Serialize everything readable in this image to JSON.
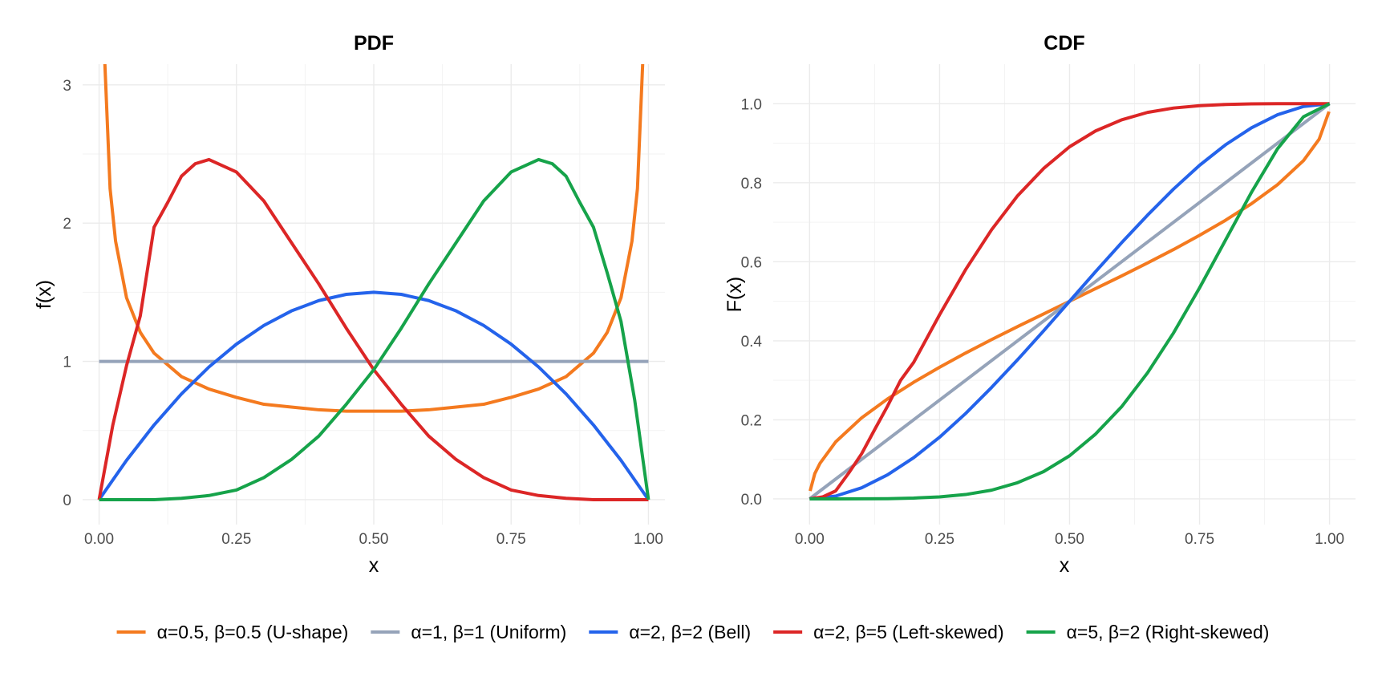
{
  "chart_data": [
    {
      "type": "line",
      "title": "PDF",
      "xlabel": "x",
      "ylabel": "f(x)",
      "xlim": [
        -0.03,
        1.03
      ],
      "ylim": [
        -0.18,
        3.15
      ],
      "xticks": [
        0,
        0.25,
        0.5,
        0.75,
        1
      ],
      "xtick_labels": [
        "0.00",
        "0.25",
        "0.50",
        "0.75",
        "1.00"
      ],
      "yticks": [
        0,
        1,
        2,
        3
      ],
      "ytick_labels": [
        "0",
        "1",
        "2",
        "3"
      ],
      "grid": true,
      "series": [
        {
          "name": "α=0.5, β=0.5 (U-shape)",
          "color": "#f47a1f",
          "x": [
            0.01,
            0.02,
            0.03,
            0.05,
            0.075,
            0.1,
            0.15,
            0.2,
            0.25,
            0.3,
            0.35,
            0.4,
            0.45,
            0.5,
            0.55,
            0.6,
            0.65,
            0.7,
            0.75,
            0.8,
            0.85,
            0.9,
            0.925,
            0.95,
            0.97,
            0.98,
            0.99
          ],
          "y": [
            3.2,
            2.25,
            1.87,
            1.46,
            1.21,
            1.06,
            0.89,
            0.8,
            0.74,
            0.69,
            0.67,
            0.65,
            0.64,
            0.64,
            0.64,
            0.65,
            0.67,
            0.69,
            0.74,
            0.8,
            0.89,
            1.06,
            1.21,
            1.46,
            1.87,
            2.25,
            3.2
          ]
        },
        {
          "name": "α=1, β=1 (Uniform)",
          "color": "#95a3b9",
          "x": [
            0,
            1
          ],
          "y": [
            1,
            1
          ]
        },
        {
          "name": "α=2, β=2 (Bell)",
          "color": "#2463eb",
          "x": [
            0,
            0.05,
            0.1,
            0.15,
            0.2,
            0.25,
            0.3,
            0.35,
            0.4,
            0.45,
            0.5,
            0.55,
            0.6,
            0.65,
            0.7,
            0.75,
            0.8,
            0.85,
            0.9,
            0.95,
            1
          ],
          "y": [
            0,
            0.285,
            0.54,
            0.765,
            0.96,
            1.125,
            1.26,
            1.365,
            1.44,
            1.485,
            1.5,
            1.485,
            1.44,
            1.365,
            1.26,
            1.125,
            0.96,
            0.765,
            0.54,
            0.285,
            0
          ]
        },
        {
          "name": "α=2, β=5 (Left-skewed)",
          "color": "#dc2626",
          "x": [
            0,
            0.025,
            0.05,
            0.075,
            0.1,
            0.125,
            0.15,
            0.175,
            0.2,
            0.25,
            0.3,
            0.35,
            0.4,
            0.45,
            0.5,
            0.55,
            0.6,
            0.65,
            0.7,
            0.75,
            0.8,
            0.85,
            0.9,
            0.95,
            1
          ],
          "y": [
            0,
            0.54,
            0.97,
            1.33,
            1.97,
            2.15,
            2.34,
            2.43,
            2.46,
            2.37,
            2.16,
            1.86,
            1.56,
            1.24,
            0.94,
            0.69,
            0.46,
            0.29,
            0.16,
            0.07,
            0.03,
            0.01,
            0,
            0,
            0
          ]
        },
        {
          "name": "α=5, β=2 (Right-skewed)",
          "color": "#16a34a",
          "x": [
            0,
            0.05,
            0.1,
            0.15,
            0.2,
            0.25,
            0.3,
            0.35,
            0.4,
            0.45,
            0.5,
            0.55,
            0.6,
            0.65,
            0.7,
            0.75,
            0.8,
            0.825,
            0.85,
            0.875,
            0.9,
            0.925,
            0.95,
            0.975,
            1
          ],
          "y": [
            0,
            0,
            0,
            0.01,
            0.03,
            0.07,
            0.16,
            0.29,
            0.46,
            0.69,
            0.94,
            1.24,
            1.56,
            1.86,
            2.16,
            2.37,
            2.46,
            2.43,
            2.34,
            2.15,
            1.97,
            1.64,
            1.29,
            0.72,
            0
          ]
        }
      ]
    },
    {
      "type": "line",
      "title": "CDF",
      "xlabel": "x",
      "ylabel": "F(x)",
      "xlim": [
        -0.07,
        1.05
      ],
      "ylim": [
        -0.065,
        1.1
      ],
      "xticks": [
        0,
        0.25,
        0.5,
        0.75,
        1
      ],
      "xtick_labels": [
        "0.00",
        "0.25",
        "0.50",
        "0.75",
        "1.00"
      ],
      "yticks": [
        0,
        0.2,
        0.4,
        0.6,
        0.8,
        1
      ],
      "ytick_labels": [
        "0.0",
        "0.2",
        "0.4",
        "0.6",
        "0.8",
        "1.0"
      ],
      "grid": true,
      "series": [
        {
          "name": "α=0.5, β=0.5 (U-shape)",
          "color": "#f47a1f",
          "x": [
            0.001,
            0.01,
            0.02,
            0.05,
            0.1,
            0.15,
            0.2,
            0.25,
            0.3,
            0.35,
            0.4,
            0.45,
            0.5,
            0.55,
            0.6,
            0.65,
            0.7,
            0.75,
            0.8,
            0.85,
            0.9,
            0.95,
            0.98,
            0.999
          ],
          "y": [
            0.02,
            0.064,
            0.09,
            0.144,
            0.205,
            0.253,
            0.295,
            0.333,
            0.369,
            0.403,
            0.436,
            0.468,
            0.5,
            0.532,
            0.564,
            0.597,
            0.631,
            0.667,
            0.705,
            0.747,
            0.795,
            0.856,
            0.91,
            0.98
          ]
        },
        {
          "name": "α=1, β=1 (Uniform)",
          "color": "#95a3b9",
          "x": [
            0,
            1
          ],
          "y": [
            0,
            1
          ]
        },
        {
          "name": "α=2, β=2 (Bell)",
          "color": "#2463eb",
          "x": [
            0,
            0.05,
            0.1,
            0.15,
            0.2,
            0.25,
            0.3,
            0.35,
            0.4,
            0.45,
            0.5,
            0.55,
            0.6,
            0.65,
            0.7,
            0.75,
            0.8,
            0.85,
            0.9,
            0.95,
            1
          ],
          "y": [
            0,
            0.007,
            0.028,
            0.061,
            0.104,
            0.156,
            0.216,
            0.282,
            0.352,
            0.425,
            0.5,
            0.575,
            0.648,
            0.718,
            0.784,
            0.844,
            0.896,
            0.939,
            0.972,
            0.993,
            1
          ]
        },
        {
          "name": "α=2, β=5 (Left-skewed)",
          "color": "#dc2626",
          "x": [
            0,
            0.025,
            0.05,
            0.075,
            0.1,
            0.125,
            0.15,
            0.175,
            0.2,
            0.25,
            0.3,
            0.35,
            0.4,
            0.45,
            0.5,
            0.55,
            0.6,
            0.65,
            0.7,
            0.75,
            0.8,
            0.85,
            0.9,
            0.95,
            1
          ],
          "y": [
            0,
            0.005,
            0.02,
            0.065,
            0.114,
            0.175,
            0.235,
            0.3,
            0.345,
            0.466,
            0.58,
            0.681,
            0.767,
            0.836,
            0.891,
            0.931,
            0.959,
            0.978,
            0.989,
            0.995,
            0.998,
            0.9995,
            1,
            1,
            1
          ]
        },
        {
          "name": "α=5, β=2 (Right-skewed)",
          "color": "#16a34a",
          "x": [
            0,
            0.05,
            0.1,
            0.15,
            0.2,
            0.25,
            0.3,
            0.35,
            0.4,
            0.45,
            0.5,
            0.55,
            0.6,
            0.65,
            0.7,
            0.75,
            0.8,
            0.85,
            0.9,
            0.95,
            1
          ],
          "y": [
            0,
            0,
            0.0001,
            0.0005,
            0.002,
            0.005,
            0.011,
            0.022,
            0.041,
            0.069,
            0.109,
            0.164,
            0.233,
            0.319,
            0.42,
            0.534,
            0.655,
            0.776,
            0.886,
            0.967,
            1
          ]
        }
      ]
    }
  ],
  "legend": {
    "position": "bottom",
    "items": [
      {
        "label": "α=0.5, β=0.5 (U-shape)",
        "color": "#f47a1f"
      },
      {
        "label": "α=1, β=1 (Uniform)",
        "color": "#95a3b9"
      },
      {
        "label": "α=2, β=2 (Bell)",
        "color": "#2463eb"
      },
      {
        "label": "α=2, β=5 (Left-skewed)",
        "color": "#dc2626"
      },
      {
        "label": "α=5, β=2 (Right-skewed)",
        "color": "#16a34a"
      }
    ]
  }
}
